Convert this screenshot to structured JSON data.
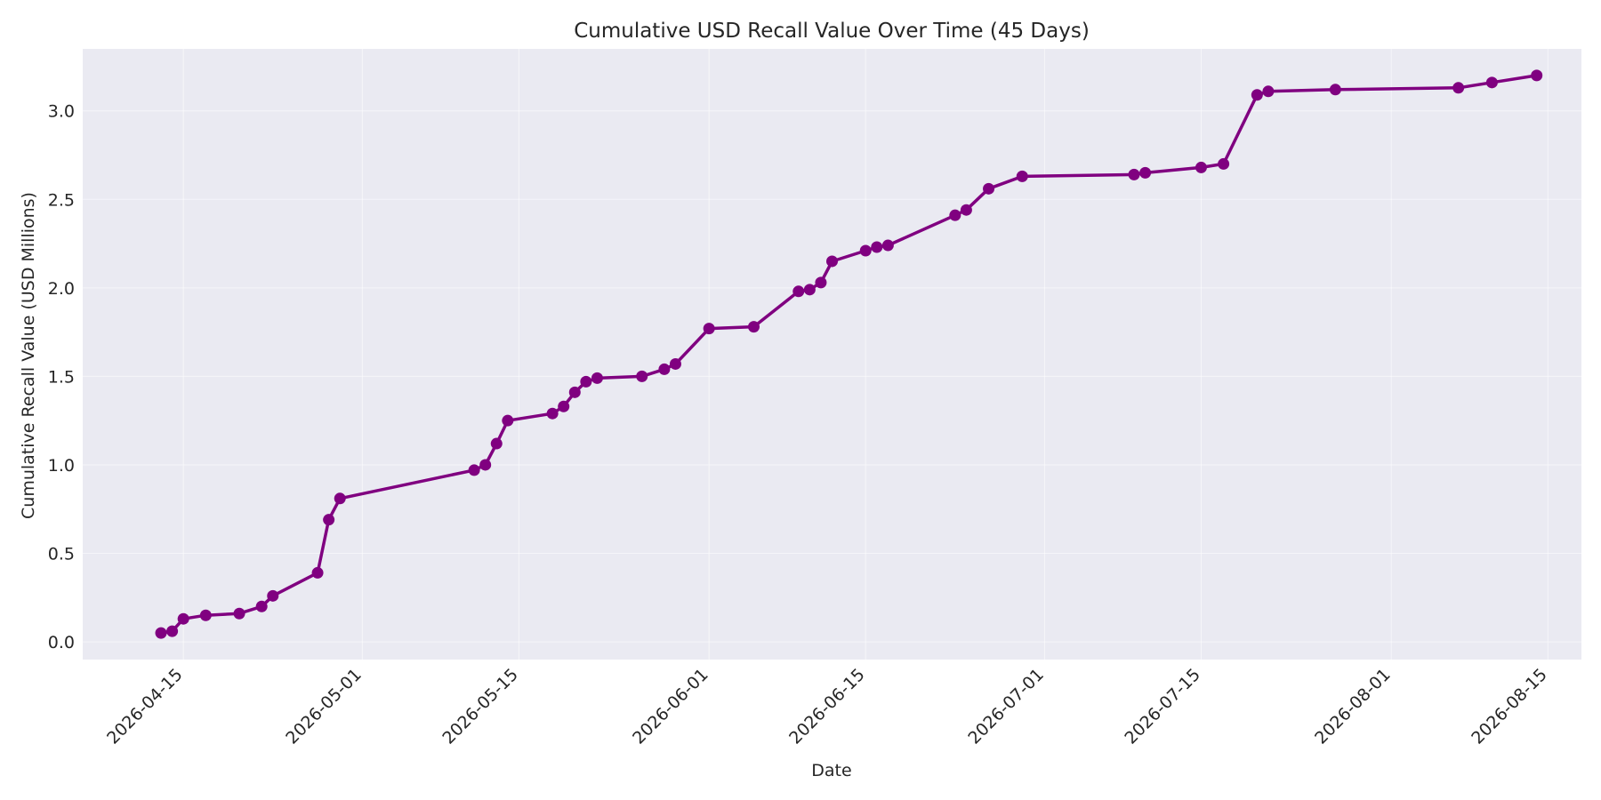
{
  "chart_data": {
    "type": "line",
    "title": "Cumulative USD Recall Value Over Time (45 Days)",
    "xlabel": "Date",
    "ylabel": "Cumulative Recall Value (USD Millions)",
    "xlim": [
      "2026-04-06",
      "2026-08-18"
    ],
    "ylim": [
      -0.1,
      3.35
    ],
    "grid": true,
    "line_color": "#800080",
    "plot_bg": "#eaeaf2",
    "x_ticks": [
      "2026-04-15",
      "2026-05-01",
      "2026-05-15",
      "2026-06-01",
      "2026-06-15",
      "2026-07-01",
      "2026-07-15",
      "2026-08-01",
      "2026-08-15"
    ],
    "y_ticks": [
      0.0,
      0.5,
      1.0,
      1.5,
      2.0,
      2.5,
      3.0
    ],
    "y_tick_labels": [
      "0.0",
      "0.5",
      "1.0",
      "1.5",
      "2.0",
      "2.5",
      "3.0"
    ],
    "series": [
      {
        "x": [
          "2026-04-13",
          "2026-04-14",
          "2026-04-15",
          "2026-04-17",
          "2026-04-20",
          "2026-04-22",
          "2026-04-23",
          "2026-04-27",
          "2026-04-28",
          "2026-04-29",
          "2026-05-11",
          "2026-05-12",
          "2026-05-13",
          "2026-05-14",
          "2026-05-18",
          "2026-05-19",
          "2026-05-20",
          "2026-05-21",
          "2026-05-22",
          "2026-05-26",
          "2026-05-28",
          "2026-05-29",
          "2026-06-01",
          "2026-06-05",
          "2026-06-09",
          "2026-06-10",
          "2026-06-11",
          "2026-06-12",
          "2026-06-15",
          "2026-06-16",
          "2026-06-17",
          "2026-06-23",
          "2026-06-24",
          "2026-06-26",
          "2026-06-29",
          "2026-07-09",
          "2026-07-10",
          "2026-07-15",
          "2026-07-17",
          "2026-07-20",
          "2026-07-21",
          "2026-07-27",
          "2026-08-07",
          "2026-08-10",
          "2026-08-14"
        ],
        "values": [
          0.05,
          0.06,
          0.13,
          0.15,
          0.16,
          0.2,
          0.26,
          0.39,
          0.69,
          0.81,
          0.97,
          1.0,
          1.12,
          1.25,
          1.29,
          1.33,
          1.41,
          1.47,
          1.49,
          1.5,
          1.54,
          1.57,
          1.77,
          1.78,
          1.98,
          1.99,
          2.03,
          2.15,
          2.21,
          2.23,
          2.24,
          2.41,
          2.44,
          2.56,
          2.63,
          2.64,
          2.65,
          2.68,
          2.7,
          3.09,
          3.11,
          3.12,
          3.13,
          3.16,
          3.2
        ]
      }
    ]
  }
}
